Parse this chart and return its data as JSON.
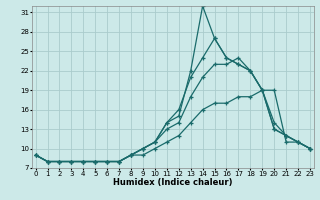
{
  "xlabel": "Humidex (Indice chaleur)",
  "bg_color": "#cce9e8",
  "grid_color": "#aacccc",
  "line_color": "#1a6b6b",
  "xlim": [
    0,
    23
  ],
  "ylim": [
    7,
    32
  ],
  "yticks": [
    7,
    10,
    13,
    16,
    19,
    22,
    25,
    28,
    31
  ],
  "xticks": [
    0,
    1,
    2,
    3,
    4,
    5,
    6,
    7,
    8,
    9,
    10,
    11,
    12,
    13,
    14,
    15,
    16,
    17,
    18,
    19,
    20,
    21,
    22,
    23
  ],
  "series": [
    [
      9,
      8,
      8,
      8,
      8,
      8,
      8,
      8,
      9,
      10,
      11,
      14,
      15,
      22,
      32,
      27,
      24,
      23,
      22,
      19,
      13,
      12,
      11,
      10
    ],
    [
      9,
      8,
      8,
      8,
      8,
      8,
      8,
      8,
      9,
      10,
      11,
      14,
      16,
      21,
      24,
      27,
      24,
      23,
      22,
      19,
      13,
      12,
      11,
      10
    ],
    [
      9,
      8,
      8,
      8,
      8,
      8,
      8,
      8,
      9,
      10,
      11,
      13,
      14,
      18,
      21,
      23,
      23,
      24,
      22,
      19,
      14,
      12,
      11,
      10
    ],
    [
      9,
      8,
      8,
      8,
      8,
      8,
      8,
      8,
      9,
      9,
      10,
      11,
      12,
      14,
      16,
      17,
      17,
      18,
      18,
      19,
      19,
      11,
      11,
      10
    ]
  ]
}
